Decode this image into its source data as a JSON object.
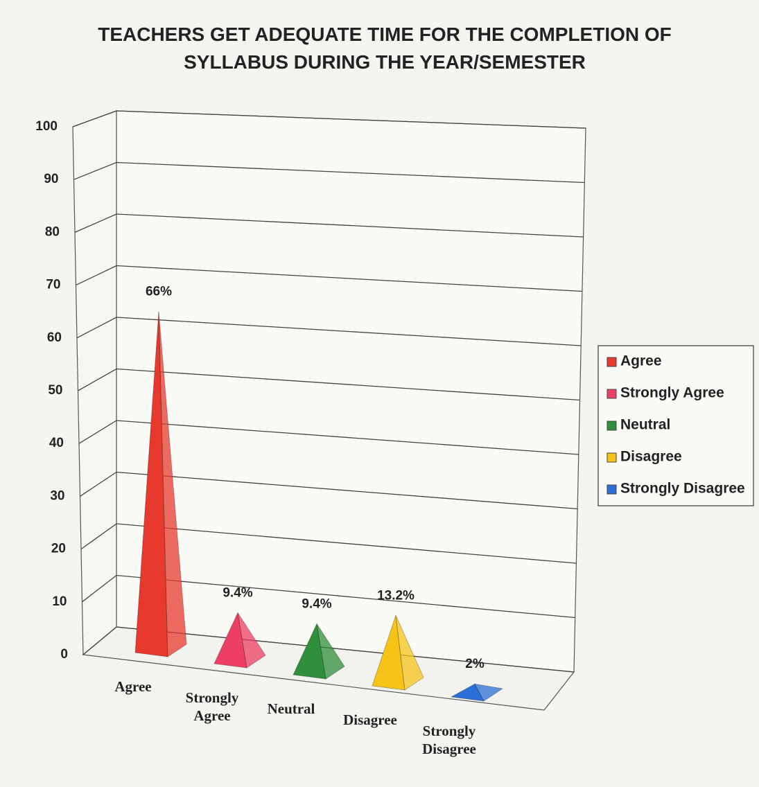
{
  "chart_data": {
    "type": "pyramid",
    "title": "TEACHERS GET ADEQUATE TIME FOR THE COMPLETION OF SYLLABUS DURING THE YEAR/SEMESTER",
    "categories": [
      "Agree",
      "Strongly Agree",
      "Neutral",
      "Disagree",
      "Strongly Disagree"
    ],
    "values": [
      66,
      9.4,
      9.4,
      13.2,
      2
    ],
    "value_labels": [
      "66%",
      "9.4%",
      "9.4%",
      "13.2%",
      "2%"
    ],
    "colors": [
      "#e8392e",
      "#ec3f63",
      "#2f8f3a",
      "#f6c419",
      "#2d6fd8"
    ],
    "ylim": [
      0,
      100
    ],
    "yticks": [
      0,
      10,
      20,
      30,
      40,
      50,
      60,
      70,
      80,
      90,
      100
    ],
    "grid": true,
    "legend": "right"
  }
}
